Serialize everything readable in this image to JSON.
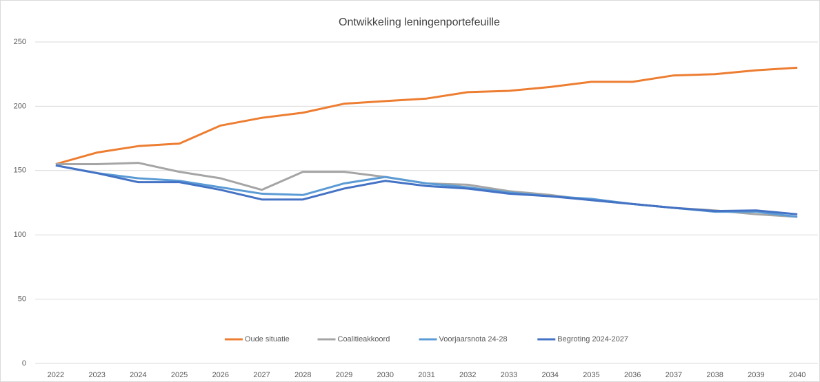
{
  "chart_data": {
    "type": "line",
    "title": "Ontwikkeling leningenportefeuille",
    "categories": [
      "2022",
      "2023",
      "2024",
      "2025",
      "2026",
      "2027",
      "2028",
      "2029",
      "2030",
      "2031",
      "2032",
      "2033",
      "2034",
      "2035",
      "2036",
      "2037",
      "2038",
      "2039",
      "2040"
    ],
    "series": [
      {
        "name": "Oude situatie",
        "color": "#ed7d31",
        "values": [
          155,
          164,
          169,
          171,
          185,
          191,
          195,
          202,
          204,
          206,
          211,
          212,
          215,
          219,
          219,
          224,
          225,
          228,
          230
        ]
      },
      {
        "name": "Coalitieakkoord",
        "color": "#a5a5a5",
        "values": [
          155,
          155,
          156,
          149,
          144,
          135,
          149,
          149,
          145,
          140,
          139,
          134,
          131,
          127,
          124,
          121,
          119,
          116,
          114
        ]
      },
      {
        "name": "Voorjaarsnota 24-28",
        "color": "#5b9bd5",
        "values": [
          154,
          148,
          144,
          142,
          137,
          132,
          131,
          140,
          145,
          140,
          137,
          133,
          130,
          128,
          124,
          121,
          118,
          118,
          114
        ]
      },
      {
        "name": "Begroting 2024-2027",
        "color": "#4472c4",
        "values": [
          154,
          148,
          141,
          141,
          135,
          127.5,
          127.5,
          136,
          142,
          138,
          136,
          132,
          130,
          127,
          124,
          121,
          118.5,
          119,
          116
        ]
      }
    ],
    "ylim": [
      0,
      250
    ],
    "yticks": [
      0,
      50,
      100,
      150,
      200,
      250
    ],
    "grid": true,
    "legend": "bottom"
  }
}
